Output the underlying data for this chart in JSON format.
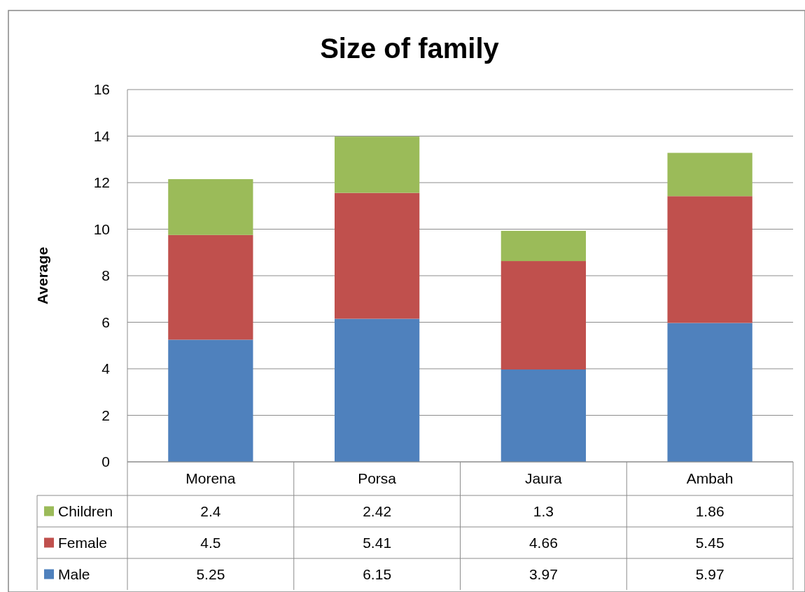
{
  "chart_data": {
    "type": "bar",
    "title": "Size of family",
    "ylabel": "Average",
    "categories": [
      "Morena",
      "Porsa",
      "Jaura",
      "Ambah"
    ],
    "stacked": true,
    "series": [
      {
        "name": "Male",
        "color": "#4f81bd",
        "values": [
          5.25,
          6.15,
          3.97,
          5.97
        ]
      },
      {
        "name": "Female",
        "color": "#c0504d",
        "values": [
          4.5,
          5.41,
          4.66,
          5.45
        ]
      },
      {
        "name": "Children",
        "color": "#9bbb59",
        "values": [
          2.4,
          2.42,
          1.3,
          1.86
        ]
      }
    ],
    "ylim": [
      0,
      16
    ],
    "yticks": [
      0,
      2,
      4,
      6,
      8,
      10,
      12,
      14,
      16
    ],
    "grid": "y",
    "legend": "bottom",
    "data_labels": true
  }
}
